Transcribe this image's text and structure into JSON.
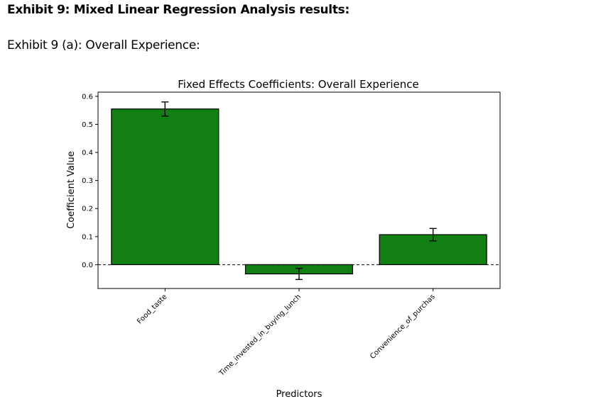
{
  "heading": "Exhibit 9: Mixed Linear Regression Analysis results:",
  "subheading": "Exhibit 9 (a): Overall Experience:",
  "chart_data": {
    "type": "bar",
    "title": "Fixed Effects Coefficients: Overall Experience",
    "xlabel": "Predictors",
    "ylabel": "Coefficient Value",
    "categories": [
      "Food_taste",
      "Time_invested_in_buying_lunch",
      "Convenience_of_purchas"
    ],
    "values": [
      0.555,
      -0.033,
      0.107
    ],
    "errors": [
      0.025,
      0.02,
      0.022
    ],
    "ylim": [
      -0.085,
      0.615
    ],
    "yticks": [
      0.0,
      0.1,
      0.2,
      0.3,
      0.4,
      0.5,
      0.6
    ],
    "ytick_labels": [
      "0.0",
      "0.1",
      "0.2",
      "0.3",
      "0.4",
      "0.5",
      "0.6"
    ],
    "reference_line": 0,
    "bar_color": "#117f11",
    "grid": false
  }
}
